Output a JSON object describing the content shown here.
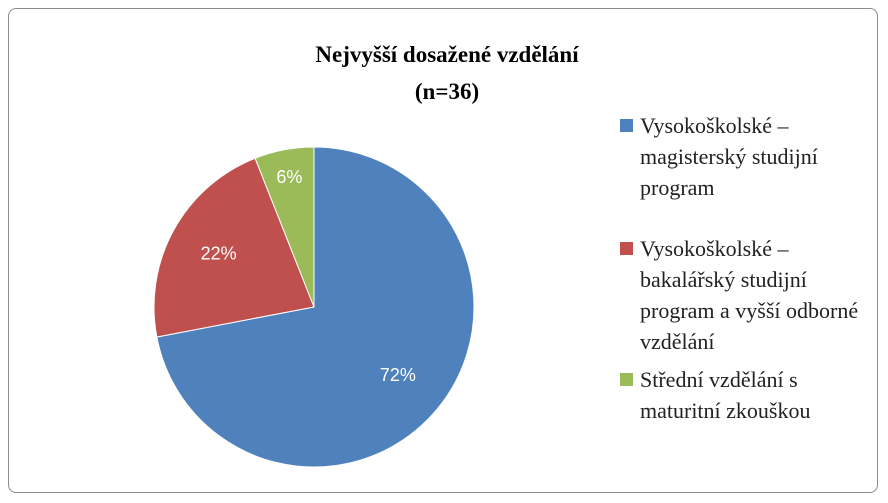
{
  "chart_data": {
    "type": "pie",
    "title": "Nejvyšší dosažené vzdělání",
    "subtitle": "(n=36)",
    "categories": [
      "Vysokoškolské – magisterský studijní program",
      "Vysokoškolské – bakalářský studijní program a vyšší odborné vzdělání",
      "Střední vzdělání s maturitní zkouškou"
    ],
    "values": [
      72,
      22,
      6
    ],
    "value_labels": [
      "72%",
      "22%",
      "6%"
    ],
    "colors": [
      "#4f81bd",
      "#c0504d",
      "#9bbb59"
    ],
    "legend": "right"
  }
}
